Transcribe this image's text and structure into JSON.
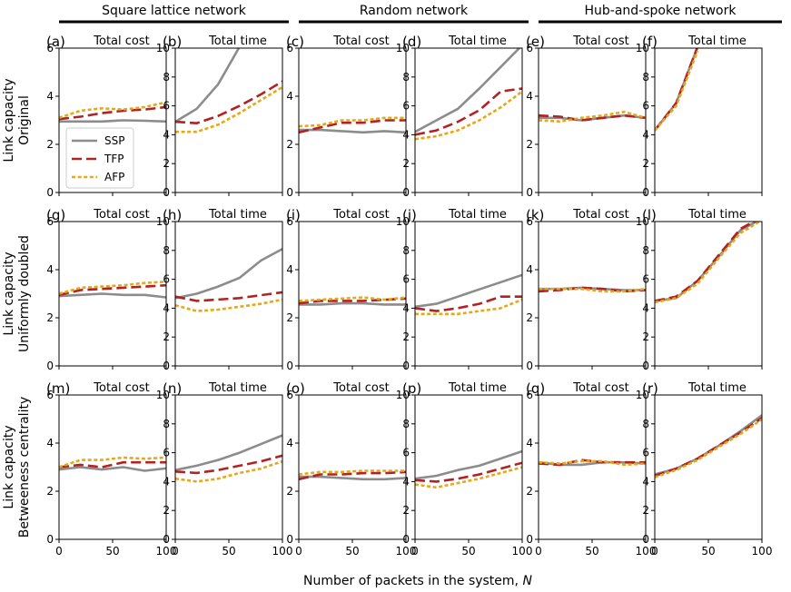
{
  "column_headers": [
    "Square lattice network",
    "Random network",
    "Hub-and-spoke network"
  ],
  "row_labels": [
    [
      "Link capacity",
      "Original"
    ],
    [
      "Link capacity",
      "Uniformly doubled"
    ],
    [
      "Link capacity",
      "Betweeness centrality"
    ]
  ],
  "shared_xlabel": "Number of packets in the system, ",
  "shared_xlabel_var": "N",
  "legend": {
    "placement": "inside panel (a), lower-left",
    "entries": [
      {
        "name": "SSP",
        "color": "#8c8c8c",
        "dash": "solid"
      },
      {
        "name": "TFP",
        "color": "#b22222",
        "dash": "dashed"
      },
      {
        "name": "AFP",
        "color": "#e6a817",
        "dash": "dotted"
      }
    ]
  },
  "colors": {
    "SSP": "#8c8c8c",
    "TFP": "#b22222",
    "AFP": "#e6a817"
  },
  "chart_data": [
    {
      "type": "line",
      "label": "(a)",
      "title": "Total cost",
      "x": [
        0,
        20,
        40,
        60,
        80,
        100
      ],
      "xlim": [
        0,
        100
      ],
      "ylim": [
        0,
        6
      ],
      "yticks": [
        0,
        2,
        4,
        6
      ],
      "xticks": [
        0,
        50,
        100
      ],
      "series": [
        {
          "name": "SSP",
          "values": [
            2.95,
            2.95,
            2.95,
            3.0,
            2.98,
            2.95
          ]
        },
        {
          "name": "TFP",
          "values": [
            3.05,
            3.15,
            3.3,
            3.4,
            3.45,
            3.55
          ]
        },
        {
          "name": "AFP",
          "values": [
            3.1,
            3.4,
            3.5,
            3.45,
            3.55,
            3.75
          ]
        }
      ]
    },
    {
      "type": "line",
      "label": "(b)",
      "title": "Total time",
      "x": [
        0,
        20,
        40,
        60,
        80,
        100
      ],
      "xlim": [
        0,
        100
      ],
      "ylim": [
        0,
        10
      ],
      "yticks": [
        0,
        2,
        4,
        6,
        8,
        10
      ],
      "xticks": [
        0,
        50,
        100
      ],
      "series": [
        {
          "name": "SSP",
          "values": [
            4.9,
            5.8,
            7.5,
            10.1,
            null,
            null
          ]
        },
        {
          "name": "TFP",
          "values": [
            4.9,
            4.8,
            5.3,
            6.0,
            6.8,
            7.7
          ]
        },
        {
          "name": "AFP",
          "values": [
            4.2,
            4.2,
            4.7,
            5.5,
            6.4,
            7.3
          ]
        }
      ]
    },
    {
      "type": "line",
      "label": "(c)",
      "title": "Total cost",
      "x": [
        0,
        20,
        40,
        60,
        80,
        100
      ],
      "xlim": [
        0,
        100
      ],
      "ylim": [
        0,
        6
      ],
      "yticks": [
        0,
        2,
        4,
        6
      ],
      "xticks": [
        0,
        50,
        100
      ],
      "series": [
        {
          "name": "SSP",
          "values": [
            2.6,
            2.6,
            2.55,
            2.5,
            2.55,
            2.5
          ]
        },
        {
          "name": "TFP",
          "values": [
            2.5,
            2.7,
            2.9,
            2.9,
            3.0,
            3.0
          ]
        },
        {
          "name": "AFP",
          "values": [
            2.75,
            2.8,
            3.0,
            3.0,
            3.1,
            3.1
          ]
        }
      ]
    },
    {
      "type": "line",
      "label": "(d)",
      "title": "Total time",
      "x": [
        0,
        20,
        40,
        60,
        80,
        100
      ],
      "xlim": [
        0,
        100
      ],
      "ylim": [
        0,
        10
      ],
      "yticks": [
        0,
        2,
        4,
        6,
        8,
        10
      ],
      "xticks": [
        0,
        50,
        100
      ],
      "series": [
        {
          "name": "SSP",
          "values": [
            4.2,
            5.0,
            5.8,
            7.2,
            8.7,
            10.2
          ]
        },
        {
          "name": "TFP",
          "values": [
            4.0,
            4.3,
            4.9,
            5.7,
            7.0,
            7.2
          ]
        },
        {
          "name": "AFP",
          "values": [
            3.7,
            3.9,
            4.3,
            5.0,
            5.9,
            7.0
          ]
        }
      ]
    },
    {
      "type": "line",
      "label": "(e)",
      "title": "Total cost",
      "x": [
        0,
        20,
        40,
        60,
        80,
        100
      ],
      "xlim": [
        0,
        100
      ],
      "ylim": [
        0,
        6
      ],
      "yticks": [
        0,
        2,
        4,
        6
      ],
      "xticks": [
        0,
        50,
        100
      ],
      "series": [
        {
          "name": "SSP",
          "values": [
            3.1,
            3.1,
            3.0,
            3.1,
            3.2,
            3.1
          ]
        },
        {
          "name": "TFP",
          "values": [
            3.2,
            3.15,
            3.0,
            3.1,
            3.2,
            3.1
          ]
        },
        {
          "name": "AFP",
          "values": [
            3.0,
            2.95,
            3.1,
            3.2,
            3.35,
            3.1
          ]
        }
      ]
    },
    {
      "type": "line",
      "label": "(f)",
      "title": "Total time",
      "x": [
        0,
        20,
        40,
        60,
        80,
        100
      ],
      "xlim": [
        0,
        100
      ],
      "ylim": [
        0,
        10
      ],
      "yticks": [
        0,
        2,
        4,
        6,
        8,
        10
      ],
      "xticks": [
        0,
        50,
        100
      ],
      "series": [
        {
          "name": "SSP",
          "values": [
            4.3,
            6.2,
            10.1,
            null,
            null,
            null
          ]
        },
        {
          "name": "TFP",
          "values": [
            4.3,
            6.2,
            10.1,
            null,
            null,
            null
          ]
        },
        {
          "name": "AFP",
          "values": [
            4.3,
            6.0,
            9.8,
            null,
            null,
            null
          ]
        }
      ]
    },
    {
      "type": "line",
      "label": "(g)",
      "title": "Total cost",
      "x": [
        0,
        20,
        40,
        60,
        80,
        100
      ],
      "xlim": [
        0,
        100
      ],
      "ylim": [
        0,
        6
      ],
      "yticks": [
        0,
        2,
        4,
        6
      ],
      "xticks": [
        0,
        50,
        100
      ],
      "series": [
        {
          "name": "SSP",
          "values": [
            2.9,
            2.95,
            3.0,
            2.95,
            2.95,
            2.85
          ]
        },
        {
          "name": "TFP",
          "values": [
            2.95,
            3.15,
            3.2,
            3.25,
            3.3,
            3.35
          ]
        },
        {
          "name": "AFP",
          "values": [
            3.0,
            3.25,
            3.3,
            3.35,
            3.45,
            3.5
          ]
        }
      ]
    },
    {
      "type": "line",
      "label": "(h)",
      "title": "Total time",
      "x": [
        0,
        20,
        40,
        60,
        80,
        100
      ],
      "xlim": [
        0,
        100
      ],
      "ylim": [
        0,
        10
      ],
      "yticks": [
        0,
        2,
        4,
        6,
        8,
        10
      ],
      "xticks": [
        0,
        50,
        100
      ],
      "series": [
        {
          "name": "SSP",
          "values": [
            4.7,
            5.0,
            5.5,
            6.1,
            7.3,
            8.1
          ]
        },
        {
          "name": "TFP",
          "values": [
            4.8,
            4.5,
            4.6,
            4.7,
            4.9,
            5.1
          ]
        },
        {
          "name": "AFP",
          "values": [
            4.2,
            3.8,
            3.9,
            4.1,
            4.3,
            4.6
          ]
        }
      ]
    },
    {
      "type": "line",
      "label": "(i)",
      "title": "Total cost",
      "x": [
        0,
        20,
        40,
        60,
        80,
        100
      ],
      "xlim": [
        0,
        100
      ],
      "ylim": [
        0,
        6
      ],
      "yticks": [
        0,
        2,
        4,
        6
      ],
      "xticks": [
        0,
        50,
        100
      ],
      "series": [
        {
          "name": "SSP",
          "values": [
            2.55,
            2.55,
            2.6,
            2.6,
            2.55,
            2.55
          ]
        },
        {
          "name": "TFP",
          "values": [
            2.6,
            2.7,
            2.7,
            2.7,
            2.75,
            2.8
          ]
        },
        {
          "name": "AFP",
          "values": [
            2.7,
            2.75,
            2.8,
            2.85,
            2.75,
            2.85
          ]
        }
      ]
    },
    {
      "type": "line",
      "label": "(j)",
      "title": "Total time",
      "x": [
        0,
        20,
        40,
        60,
        80,
        100
      ],
      "xlim": [
        0,
        100
      ],
      "ylim": [
        0,
        10
      ],
      "yticks": [
        0,
        2,
        4,
        6,
        8,
        10
      ],
      "xticks": [
        0,
        50,
        100
      ],
      "series": [
        {
          "name": "SSP",
          "values": [
            4.1,
            4.3,
            4.8,
            5.3,
            5.8,
            6.3
          ]
        },
        {
          "name": "TFP",
          "values": [
            4.0,
            3.8,
            4.0,
            4.3,
            4.8,
            4.8
          ]
        },
        {
          "name": "AFP",
          "values": [
            3.6,
            3.6,
            3.6,
            3.8,
            4.0,
            4.6
          ]
        }
      ]
    },
    {
      "type": "line",
      "label": "(k)",
      "title": "Total cost",
      "x": [
        0,
        20,
        40,
        60,
        80,
        100
      ],
      "xlim": [
        0,
        100
      ],
      "ylim": [
        0,
        6
      ],
      "yticks": [
        0,
        2,
        4,
        6
      ],
      "xticks": [
        0,
        50,
        100
      ],
      "series": [
        {
          "name": "SSP",
          "values": [
            3.2,
            3.2,
            3.25,
            3.2,
            3.15,
            3.15
          ]
        },
        {
          "name": "TFP",
          "values": [
            3.1,
            3.15,
            3.25,
            3.2,
            3.1,
            3.15
          ]
        },
        {
          "name": "AFP",
          "values": [
            3.2,
            3.2,
            3.2,
            3.1,
            3.1,
            3.2
          ]
        }
      ]
    },
    {
      "type": "line",
      "label": "(l)",
      "title": "Total time",
      "x": [
        0,
        20,
        40,
        60,
        80,
        100
      ],
      "xlim": [
        0,
        100
      ],
      "ylim": [
        0,
        10
      ],
      "yticks": [
        0,
        2,
        4,
        6,
        8,
        10
      ],
      "xticks": [
        0,
        50,
        100
      ],
      "series": [
        {
          "name": "SSP",
          "values": [
            4.5,
            4.7,
            5.9,
            7.6,
            9.4,
            10.2
          ]
        },
        {
          "name": "TFP",
          "values": [
            4.5,
            4.8,
            5.9,
            7.7,
            9.5,
            10.3
          ]
        },
        {
          "name": "AFP",
          "values": [
            4.4,
            4.7,
            5.7,
            7.5,
            9.2,
            10.1
          ]
        }
      ]
    },
    {
      "type": "line",
      "label": "(m)",
      "title": "Total cost",
      "x": [
        0,
        20,
        40,
        60,
        80,
        100
      ],
      "xlim": [
        0,
        100
      ],
      "ylim": [
        0,
        6
      ],
      "yticks": [
        0,
        2,
        4,
        6
      ],
      "xticks": [
        0,
        50,
        100
      ],
      "series": [
        {
          "name": "SSP",
          "values": [
            2.9,
            3.0,
            2.9,
            3.0,
            2.85,
            2.95
          ]
        },
        {
          "name": "TFP",
          "values": [
            3.0,
            3.1,
            3.0,
            3.2,
            3.2,
            3.2
          ]
        },
        {
          "name": "AFP",
          "values": [
            3.0,
            3.3,
            3.3,
            3.4,
            3.35,
            3.4
          ]
        }
      ]
    },
    {
      "type": "line",
      "label": "(n)",
      "title": "Total time",
      "x": [
        0,
        20,
        40,
        60,
        80,
        100
      ],
      "xlim": [
        0,
        100
      ],
      "ylim": [
        0,
        10
      ],
      "yticks": [
        0,
        2,
        4,
        6,
        8,
        10
      ],
      "xticks": [
        0,
        50,
        100
      ],
      "series": [
        {
          "name": "SSP",
          "values": [
            4.8,
            5.1,
            5.5,
            6.0,
            6.6,
            7.2
          ]
        },
        {
          "name": "TFP",
          "values": [
            4.7,
            4.6,
            4.8,
            5.1,
            5.4,
            5.8
          ]
        },
        {
          "name": "AFP",
          "values": [
            4.2,
            4.0,
            4.2,
            4.6,
            4.9,
            5.4
          ]
        }
      ]
    },
    {
      "type": "line",
      "label": "(o)",
      "title": "Total cost",
      "x": [
        0,
        20,
        40,
        60,
        80,
        100
      ],
      "xlim": [
        0,
        100
      ],
      "ylim": [
        0,
        6
      ],
      "yticks": [
        0,
        2,
        4,
        6
      ],
      "xticks": [
        0,
        50,
        100
      ],
      "series": [
        {
          "name": "SSP",
          "values": [
            2.6,
            2.6,
            2.55,
            2.5,
            2.5,
            2.55
          ]
        },
        {
          "name": "TFP",
          "values": [
            2.5,
            2.7,
            2.7,
            2.75,
            2.75,
            2.8
          ]
        },
        {
          "name": "AFP",
          "values": [
            2.7,
            2.8,
            2.8,
            2.85,
            2.85,
            2.85
          ]
        }
      ]
    },
    {
      "type": "line",
      "label": "(p)",
      "title": "Total time",
      "x": [
        0,
        20,
        40,
        60,
        80,
        100
      ],
      "xlim": [
        0,
        100
      ],
      "ylim": [
        0,
        10
      ],
      "yticks": [
        0,
        2,
        4,
        6,
        8,
        10
      ],
      "xticks": [
        0,
        50,
        100
      ],
      "series": [
        {
          "name": "SSP",
          "values": [
            4.2,
            4.4,
            4.8,
            5.1,
            5.6,
            6.1
          ]
        },
        {
          "name": "TFP",
          "values": [
            4.1,
            4.0,
            4.2,
            4.5,
            4.9,
            5.3
          ]
        },
        {
          "name": "AFP",
          "values": [
            3.8,
            3.6,
            3.9,
            4.2,
            4.6,
            5.0
          ]
        }
      ]
    },
    {
      "type": "line",
      "label": "(q)",
      "title": "Total cost",
      "x": [
        0,
        20,
        40,
        60,
        80,
        100
      ],
      "xlim": [
        0,
        100
      ],
      "ylim": [
        0,
        6
      ],
      "yticks": [
        0,
        2,
        4,
        6
      ],
      "xticks": [
        0,
        50,
        100
      ],
      "series": [
        {
          "name": "SSP",
          "values": [
            3.2,
            3.1,
            3.1,
            3.2,
            3.2,
            3.15
          ]
        },
        {
          "name": "TFP",
          "values": [
            3.15,
            3.1,
            3.3,
            3.2,
            3.2,
            3.2
          ]
        },
        {
          "name": "AFP",
          "values": [
            3.2,
            3.15,
            3.25,
            3.25,
            3.1,
            3.15
          ]
        }
      ]
    },
    {
      "type": "line",
      "label": "(r)",
      "title": "Total time",
      "x": [
        0,
        20,
        40,
        60,
        80,
        100
      ],
      "xlim": [
        0,
        100
      ],
      "ylim": [
        0,
        10
      ],
      "yticks": [
        0,
        2,
        4,
        6,
        8,
        10
      ],
      "xticks": [
        0,
        50,
        100
      ],
      "series": [
        {
          "name": "SSP",
          "values": [
            4.5,
            4.9,
            5.6,
            6.5,
            7.5,
            8.6
          ]
        },
        {
          "name": "TFP",
          "values": [
            4.4,
            4.9,
            5.6,
            6.5,
            7.4,
            8.4
          ]
        },
        {
          "name": "AFP",
          "values": [
            4.3,
            4.8,
            5.5,
            6.4,
            7.3,
            8.3
          ]
        }
      ]
    }
  ]
}
